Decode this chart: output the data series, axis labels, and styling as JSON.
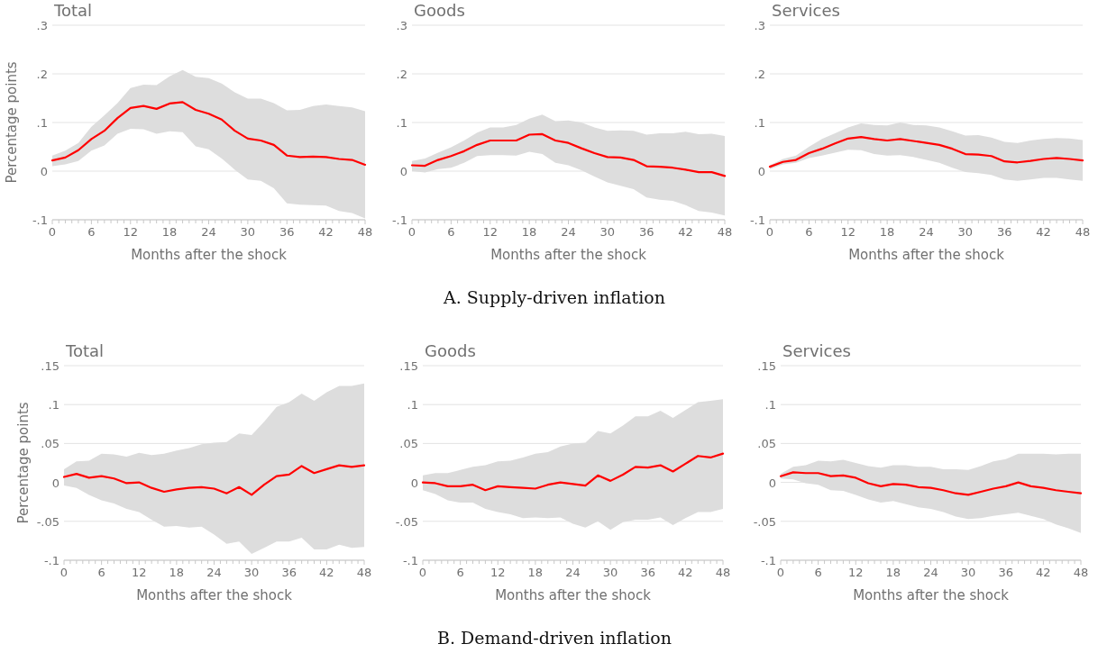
{
  "chart_data": [
    {
      "type": "line",
      "title": "Total",
      "ylabel": "Percentage points",
      "xlabel": "Months after the shock",
      "grid": "y",
      "line_style": "solid",
      "marker": "none",
      "xlim": [
        0,
        48
      ],
      "ylim": [
        -0.1,
        0.3
      ],
      "yticks": [
        {
          "value": -0.1,
          "label": "-.1"
        },
        {
          "value": 0,
          "label": "0"
        },
        {
          "value": 0.1,
          "label": ".1"
        },
        {
          "value": 0.2,
          "label": ".2"
        },
        {
          "value": 0.3,
          "label": ".3"
        }
      ],
      "xticks": [
        0,
        {
          "value": 1,
          "label": null
        },
        {
          "value": 2,
          "label": null
        },
        {
          "value": 3,
          "label": null
        },
        {
          "value": 4,
          "label": null
        },
        {
          "value": 5,
          "label": null
        },
        6,
        {
          "value": 7,
          "label": null
        },
        {
          "value": 8,
          "label": null
        },
        {
          "value": 9,
          "label": null
        },
        {
          "value": 10,
          "label": null
        },
        {
          "value": 11,
          "label": null
        },
        12,
        {
          "value": 13,
          "label": null
        },
        {
          "value": 14,
          "label": null
        },
        {
          "value": 15,
          "label": null
        },
        {
          "value": 16,
          "label": null
        },
        {
          "value": 17,
          "label": null
        },
        18,
        {
          "value": 19,
          "label": null
        },
        {
          "value": 20,
          "label": null
        },
        {
          "value": 21,
          "label": null
        },
        {
          "value": 22,
          "label": null
        },
        {
          "value": 23,
          "label": null
        },
        24,
        {
          "value": 25,
          "label": null
        },
        {
          "value": 26,
          "label": null
        },
        {
          "value": 27,
          "label": null
        },
        {
          "value": 28,
          "label": null
        },
        {
          "value": 29,
          "label": null
        },
        30,
        {
          "value": 31,
          "label": null
        },
        {
          "value": 32,
          "label": null
        },
        {
          "value": 33,
          "label": null
        },
        {
          "value": 34,
          "label": null
        },
        {
          "value": 35,
          "label": null
        },
        36,
        {
          "value": 37,
          "label": null
        },
        {
          "value": 38,
          "label": null
        },
        {
          "value": 39,
          "label": null
        },
        {
          "value": 40,
          "label": null
        },
        {
          "value": 41,
          "label": null
        },
        42,
        {
          "value": 43,
          "label": null
        },
        {
          "value": 44,
          "label": null
        },
        {
          "value": 45,
          "label": null
        },
        {
          "value": 46,
          "label": null
        },
        {
          "value": 47,
          "label": null
        },
        48
      ],
      "x": [
        0,
        2,
        4,
        6,
        8,
        10,
        12,
        14,
        16,
        18,
        20,
        22,
        24,
        26,
        28,
        30,
        32,
        34,
        36,
        38,
        40,
        42,
        44,
        46,
        48
      ],
      "series": [
        {
          "color": "#ff0000",
          "values": [
            0.022,
            0.028,
            0.043,
            0.066,
            0.083,
            0.109,
            0.13,
            0.134,
            0.128,
            0.139,
            0.142,
            0.126,
            0.118,
            0.106,
            0.083,
            0.067,
            0.063,
            0.054,
            0.032,
            0.029,
            0.03,
            0.029,
            0.025,
            0.023,
            0.013
          ],
          "upper": [
            0.032,
            0.042,
            0.058,
            0.091,
            0.115,
            0.14,
            0.171,
            0.178,
            0.177,
            0.195,
            0.208,
            0.194,
            0.191,
            0.18,
            0.162,
            0.149,
            0.149,
            0.14,
            0.125,
            0.126,
            0.134,
            0.137,
            0.134,
            0.131,
            0.123
          ],
          "lower": [
            0.01,
            0.014,
            0.021,
            0.042,
            0.053,
            0.077,
            0.087,
            0.086,
            0.077,
            0.082,
            0.08,
            0.051,
            0.045,
            0.026,
            0.003,
            -0.017,
            -0.02,
            -0.035,
            -0.066,
            -0.069,
            -0.07,
            -0.071,
            -0.082,
            -0.086,
            -0.097
          ]
        }
      ]
    },
    {
      "type": "line",
      "title": "Goods",
      "xlabel": "Months after the shock",
      "grid": "y",
      "line_style": "solid",
      "marker": "none",
      "xlim": [
        0,
        48
      ],
      "ylim": [
        -0.1,
        0.3
      ],
      "yticks": [
        {
          "value": -0.1,
          "label": "-.1"
        },
        {
          "value": 0,
          "label": "0"
        },
        {
          "value": 0.1,
          "label": ".1"
        },
        {
          "value": 0.2,
          "label": ".2"
        },
        {
          "value": 0.3,
          "label": ".3"
        }
      ],
      "xticks": [
        0,
        {
          "value": 1,
          "label": null
        },
        {
          "value": 2,
          "label": null
        },
        {
          "value": 3,
          "label": null
        },
        {
          "value": 4,
          "label": null
        },
        {
          "value": 5,
          "label": null
        },
        6,
        {
          "value": 7,
          "label": null
        },
        {
          "value": 8,
          "label": null
        },
        {
          "value": 9,
          "label": null
        },
        {
          "value": 10,
          "label": null
        },
        {
          "value": 11,
          "label": null
        },
        12,
        {
          "value": 13,
          "label": null
        },
        {
          "value": 14,
          "label": null
        },
        {
          "value": 15,
          "label": null
        },
        {
          "value": 16,
          "label": null
        },
        {
          "value": 17,
          "label": null
        },
        18,
        {
          "value": 19,
          "label": null
        },
        {
          "value": 20,
          "label": null
        },
        {
          "value": 21,
          "label": null
        },
        {
          "value": 22,
          "label": null
        },
        {
          "value": 23,
          "label": null
        },
        24,
        {
          "value": 25,
          "label": null
        },
        {
          "value": 26,
          "label": null
        },
        {
          "value": 27,
          "label": null
        },
        {
          "value": 28,
          "label": null
        },
        {
          "value": 29,
          "label": null
        },
        30,
        {
          "value": 31,
          "label": null
        },
        {
          "value": 32,
          "label": null
        },
        {
          "value": 33,
          "label": null
        },
        {
          "value": 34,
          "label": null
        },
        {
          "value": 35,
          "label": null
        },
        36,
        {
          "value": 37,
          "label": null
        },
        {
          "value": 38,
          "label": null
        },
        {
          "value": 39,
          "label": null
        },
        {
          "value": 40,
          "label": null
        },
        {
          "value": 41,
          "label": null
        },
        42,
        {
          "value": 43,
          "label": null
        },
        {
          "value": 44,
          "label": null
        },
        {
          "value": 45,
          "label": null
        },
        {
          "value": 46,
          "label": null
        },
        {
          "value": 47,
          "label": null
        },
        48
      ],
      "x": [
        0,
        2,
        4,
        6,
        8,
        10,
        12,
        14,
        16,
        18,
        20,
        22,
        24,
        26,
        28,
        30,
        32,
        34,
        36,
        38,
        40,
        42,
        44,
        46,
        48
      ],
      "annotations": [
        "A. Supply-driven inflation"
      ],
      "series": [
        {
          "color": "#ff0000",
          "values": [
            0.012,
            0.011,
            0.023,
            0.031,
            0.041,
            0.054,
            0.063,
            0.063,
            0.063,
            0.075,
            0.076,
            0.063,
            0.058,
            0.047,
            0.037,
            0.029,
            0.028,
            0.023,
            0.01,
            0.009,
            0.007,
            0.003,
            -0.002,
            -0.002,
            -0.01
          ],
          "upper": [
            0.021,
            0.026,
            0.038,
            0.049,
            0.063,
            0.079,
            0.09,
            0.09,
            0.095,
            0.108,
            0.116,
            0.103,
            0.104,
            0.1,
            0.09,
            0.083,
            0.084,
            0.083,
            0.075,
            0.078,
            0.078,
            0.081,
            0.076,
            0.077,
            0.072
          ],
          "lower": [
            0.0,
            -0.003,
            0.004,
            0.007,
            0.017,
            0.031,
            0.033,
            0.033,
            0.032,
            0.04,
            0.035,
            0.017,
            0.012,
            0.002,
            -0.011,
            -0.023,
            -0.03,
            -0.037,
            -0.054,
            -0.059,
            -0.061,
            -0.07,
            -0.082,
            -0.085,
            -0.091
          ]
        }
      ]
    },
    {
      "type": "line",
      "title": "Services",
      "xlabel": "Months after the shock",
      "grid": "y",
      "line_style": "solid",
      "marker": "none",
      "xlim": [
        0,
        48
      ],
      "ylim": [
        -0.1,
        0.3
      ],
      "yticks": [
        {
          "value": -0.1,
          "label": "-.1"
        },
        {
          "value": 0,
          "label": "0"
        },
        {
          "value": 0.1,
          "label": ".1"
        },
        {
          "value": 0.2,
          "label": ".2"
        },
        {
          "value": 0.3,
          "label": ".3"
        }
      ],
      "xticks": [
        0,
        {
          "value": 1,
          "label": null
        },
        {
          "value": 2,
          "label": null
        },
        {
          "value": 3,
          "label": null
        },
        {
          "value": 4,
          "label": null
        },
        {
          "value": 5,
          "label": null
        },
        6,
        {
          "value": 7,
          "label": null
        },
        {
          "value": 8,
          "label": null
        },
        {
          "value": 9,
          "label": null
        },
        {
          "value": 10,
          "label": null
        },
        {
          "value": 11,
          "label": null
        },
        12,
        {
          "value": 13,
          "label": null
        },
        {
          "value": 14,
          "label": null
        },
        {
          "value": 15,
          "label": null
        },
        {
          "value": 16,
          "label": null
        },
        {
          "value": 17,
          "label": null
        },
        18,
        {
          "value": 19,
          "label": null
        },
        {
          "value": 20,
          "label": null
        },
        {
          "value": 21,
          "label": null
        },
        {
          "value": 22,
          "label": null
        },
        {
          "value": 23,
          "label": null
        },
        24,
        {
          "value": 25,
          "label": null
        },
        {
          "value": 26,
          "label": null
        },
        {
          "value": 27,
          "label": null
        },
        {
          "value": 28,
          "label": null
        },
        {
          "value": 29,
          "label": null
        },
        30,
        {
          "value": 31,
          "label": null
        },
        {
          "value": 32,
          "label": null
        },
        {
          "value": 33,
          "label": null
        },
        {
          "value": 34,
          "label": null
        },
        {
          "value": 35,
          "label": null
        },
        36,
        {
          "value": 37,
          "label": null
        },
        {
          "value": 38,
          "label": null
        },
        {
          "value": 39,
          "label": null
        },
        {
          "value": 40,
          "label": null
        },
        {
          "value": 41,
          "label": null
        },
        42,
        {
          "value": 43,
          "label": null
        },
        {
          "value": 44,
          "label": null
        },
        {
          "value": 45,
          "label": null
        },
        {
          "value": 46,
          "label": null
        },
        {
          "value": 47,
          "label": null
        },
        48
      ],
      "x": [
        0,
        2,
        4,
        6,
        8,
        10,
        12,
        14,
        16,
        18,
        20,
        22,
        24,
        26,
        28,
        30,
        32,
        34,
        36,
        38,
        40,
        42,
        44,
        46,
        48
      ],
      "series": [
        {
          "color": "#ff0000",
          "values": [
            0.009,
            0.019,
            0.023,
            0.037,
            0.046,
            0.057,
            0.067,
            0.07,
            0.066,
            0.063,
            0.066,
            0.062,
            0.058,
            0.054,
            0.046,
            0.035,
            0.034,
            0.031,
            0.02,
            0.018,
            0.021,
            0.025,
            0.027,
            0.025,
            0.022
          ],
          "upper": [
            0.012,
            0.025,
            0.032,
            0.05,
            0.066,
            0.078,
            0.09,
            0.098,
            0.095,
            0.094,
            0.1,
            0.095,
            0.094,
            0.09,
            0.082,
            0.073,
            0.074,
            0.069,
            0.06,
            0.058,
            0.063,
            0.066,
            0.068,
            0.067,
            0.064
          ],
          "lower": [
            0.004,
            0.014,
            0.017,
            0.027,
            0.032,
            0.038,
            0.044,
            0.043,
            0.035,
            0.032,
            0.033,
            0.029,
            0.023,
            0.017,
            0.007,
            -0.002,
            -0.004,
            -0.008,
            -0.017,
            -0.02,
            -0.017,
            -0.014,
            -0.014,
            -0.017,
            -0.02
          ]
        }
      ]
    },
    {
      "type": "line",
      "title": "Total",
      "ylabel": "Percentage points",
      "xlabel": "Months after the shock",
      "grid": "y",
      "line_style": "solid",
      "marker": "none",
      "xlim": [
        0,
        48
      ],
      "ylim": [
        -0.1,
        0.15
      ],
      "yticks": [
        {
          "value": -0.1,
          "label": "-.1"
        },
        {
          "value": -0.05,
          "label": "-.05"
        },
        {
          "value": 0,
          "label": "0"
        },
        {
          "value": 0.05,
          "label": ".05"
        },
        {
          "value": 0.1,
          "label": ".1"
        },
        {
          "value": 0.15,
          "label": ".15"
        }
      ],
      "xticks": [
        0,
        {
          "value": 1,
          "label": null
        },
        {
          "value": 2,
          "label": null
        },
        {
          "value": 3,
          "label": null
        },
        {
          "value": 4,
          "label": null
        },
        {
          "value": 5,
          "label": null
        },
        6,
        {
          "value": 7,
          "label": null
        },
        {
          "value": 8,
          "label": null
        },
        {
          "value": 9,
          "label": null
        },
        {
          "value": 10,
          "label": null
        },
        {
          "value": 11,
          "label": null
        },
        12,
        {
          "value": 13,
          "label": null
        },
        {
          "value": 14,
          "label": null
        },
        {
          "value": 15,
          "label": null
        },
        {
          "value": 16,
          "label": null
        },
        {
          "value": 17,
          "label": null
        },
        18,
        {
          "value": 19,
          "label": null
        },
        {
          "value": 20,
          "label": null
        },
        {
          "value": 21,
          "label": null
        },
        {
          "value": 22,
          "label": null
        },
        {
          "value": 23,
          "label": null
        },
        24,
        {
          "value": 25,
          "label": null
        },
        {
          "value": 26,
          "label": null
        },
        {
          "value": 27,
          "label": null
        },
        {
          "value": 28,
          "label": null
        },
        {
          "value": 29,
          "label": null
        },
        30,
        {
          "value": 31,
          "label": null
        },
        {
          "value": 32,
          "label": null
        },
        {
          "value": 33,
          "label": null
        },
        {
          "value": 34,
          "label": null
        },
        {
          "value": 35,
          "label": null
        },
        36,
        {
          "value": 37,
          "label": null
        },
        {
          "value": 38,
          "label": null
        },
        {
          "value": 39,
          "label": null
        },
        {
          "value": 40,
          "label": null
        },
        {
          "value": 41,
          "label": null
        },
        42,
        {
          "value": 43,
          "label": null
        },
        {
          "value": 44,
          "label": null
        },
        {
          "value": 45,
          "label": null
        },
        {
          "value": 46,
          "label": null
        },
        {
          "value": 47,
          "label": null
        },
        48
      ],
      "x": [
        0,
        2,
        4,
        6,
        8,
        10,
        12,
        14,
        16,
        18,
        20,
        22,
        24,
        26,
        28,
        30,
        32,
        34,
        36,
        38,
        40,
        42,
        44,
        46,
        48
      ],
      "series": [
        {
          "color": "#ff0000",
          "values": [
            0.007,
            0.011,
            0.006,
            0.008,
            0.005,
            -0.001,
            0.0,
            -0.007,
            -0.012,
            -0.009,
            -0.007,
            -0.006,
            -0.008,
            -0.014,
            -0.006,
            -0.016,
            -0.003,
            0.008,
            0.01,
            0.021,
            0.012,
            0.017,
            0.022,
            0.02,
            0.022
          ],
          "upper": [
            0.017,
            0.027,
            0.028,
            0.037,
            0.036,
            0.033,
            0.038,
            0.035,
            0.037,
            0.041,
            0.044,
            0.049,
            0.051,
            0.052,
            0.063,
            0.061,
            0.078,
            0.097,
            0.103,
            0.114,
            0.105,
            0.116,
            0.124,
            0.124,
            0.127
          ],
          "lower": [
            -0.004,
            -0.007,
            -0.016,
            -0.023,
            -0.027,
            -0.034,
            -0.038,
            -0.048,
            -0.057,
            -0.056,
            -0.058,
            -0.057,
            -0.067,
            -0.079,
            -0.076,
            -0.092,
            -0.084,
            -0.076,
            -0.076,
            -0.071,
            -0.086,
            -0.086,
            -0.08,
            -0.084,
            -0.083
          ]
        }
      ]
    },
    {
      "type": "line",
      "title": "Goods",
      "xlabel": "Months after the shock",
      "grid": "y",
      "line_style": "solid",
      "marker": "none",
      "xlim": [
        0,
        48
      ],
      "ylim": [
        -0.1,
        0.15
      ],
      "yticks": [
        {
          "value": -0.1,
          "label": "-.1"
        },
        {
          "value": -0.05,
          "label": "-.05"
        },
        {
          "value": 0,
          "label": "0"
        },
        {
          "value": 0.05,
          "label": ".05"
        },
        {
          "value": 0.1,
          "label": ".1"
        },
        {
          "value": 0.15,
          "label": ".15"
        }
      ],
      "xticks": [
        0,
        {
          "value": 1,
          "label": null
        },
        {
          "value": 2,
          "label": null
        },
        {
          "value": 3,
          "label": null
        },
        {
          "value": 4,
          "label": null
        },
        {
          "value": 5,
          "label": null
        },
        6,
        {
          "value": 7,
          "label": null
        },
        {
          "value": 8,
          "label": null
        },
        {
          "value": 9,
          "label": null
        },
        {
          "value": 10,
          "label": null
        },
        {
          "value": 11,
          "label": null
        },
        12,
        {
          "value": 13,
          "label": null
        },
        {
          "value": 14,
          "label": null
        },
        {
          "value": 15,
          "label": null
        },
        {
          "value": 16,
          "label": null
        },
        {
          "value": 17,
          "label": null
        },
        18,
        {
          "value": 19,
          "label": null
        },
        {
          "value": 20,
          "label": null
        },
        {
          "value": 21,
          "label": null
        },
        {
          "value": 22,
          "label": null
        },
        {
          "value": 23,
          "label": null
        },
        24,
        {
          "value": 25,
          "label": null
        },
        {
          "value": 26,
          "label": null
        },
        {
          "value": 27,
          "label": null
        },
        {
          "value": 28,
          "label": null
        },
        {
          "value": 29,
          "label": null
        },
        30,
        {
          "value": 31,
          "label": null
        },
        {
          "value": 32,
          "label": null
        },
        {
          "value": 33,
          "label": null
        },
        {
          "value": 34,
          "label": null
        },
        {
          "value": 35,
          "label": null
        },
        36,
        {
          "value": 37,
          "label": null
        },
        {
          "value": 38,
          "label": null
        },
        {
          "value": 39,
          "label": null
        },
        {
          "value": 40,
          "label": null
        },
        {
          "value": 41,
          "label": null
        },
        42,
        {
          "value": 43,
          "label": null
        },
        {
          "value": 44,
          "label": null
        },
        {
          "value": 45,
          "label": null
        },
        {
          "value": 46,
          "label": null
        },
        {
          "value": 47,
          "label": null
        },
        48
      ],
      "x": [
        0,
        2,
        4,
        6,
        8,
        10,
        12,
        14,
        16,
        18,
        20,
        22,
        24,
        26,
        28,
        30,
        32,
        34,
        36,
        38,
        40,
        42,
        44,
        46,
        48
      ],
      "annotations": [
        "B. Demand-driven inflation"
      ],
      "series": [
        {
          "color": "#ff0000",
          "values": [
            0.0,
            -0.001,
            -0.005,
            -0.005,
            -0.003,
            -0.01,
            -0.005,
            -0.006,
            -0.007,
            -0.008,
            -0.003,
            0.0,
            -0.002,
            -0.004,
            0.009,
            0.002,
            0.01,
            0.02,
            0.019,
            0.022,
            0.014,
            0.024,
            0.034,
            0.032,
            0.037
          ],
          "upper": [
            0.009,
            0.012,
            0.012,
            0.016,
            0.02,
            0.022,
            0.027,
            0.028,
            0.032,
            0.037,
            0.039,
            0.046,
            0.05,
            0.051,
            0.066,
            0.063,
            0.073,
            0.085,
            0.085,
            0.092,
            0.083,
            0.093,
            0.103,
            0.105,
            0.107
          ],
          "lower": [
            -0.01,
            -0.015,
            -0.023,
            -0.026,
            -0.026,
            -0.034,
            -0.038,
            -0.041,
            -0.046,
            -0.045,
            -0.046,
            -0.045,
            -0.053,
            -0.058,
            -0.05,
            -0.061,
            -0.051,
            -0.048,
            -0.048,
            -0.045,
            -0.055,
            -0.046,
            -0.038,
            -0.038,
            -0.034
          ]
        }
      ]
    },
    {
      "type": "line",
      "title": "Services",
      "xlabel": "Months after the shock",
      "grid": "y",
      "line_style": "solid",
      "marker": "none",
      "xlim": [
        0,
        48
      ],
      "ylim": [
        -0.1,
        0.15
      ],
      "yticks": [
        {
          "value": -0.1,
          "label": "-.1"
        },
        {
          "value": -0.05,
          "label": "-.05"
        },
        {
          "value": 0,
          "label": "0"
        },
        {
          "value": 0.05,
          "label": ".05"
        },
        {
          "value": 0.1,
          "label": ".1"
        },
        {
          "value": 0.15,
          "label": ".15"
        }
      ],
      "xticks": [
        0,
        {
          "value": 1,
          "label": null
        },
        {
          "value": 2,
          "label": null
        },
        {
          "value": 3,
          "label": null
        },
        {
          "value": 4,
          "label": null
        },
        {
          "value": 5,
          "label": null
        },
        6,
        {
          "value": 7,
          "label": null
        },
        {
          "value": 8,
          "label": null
        },
        {
          "value": 9,
          "label": null
        },
        {
          "value": 10,
          "label": null
        },
        {
          "value": 11,
          "label": null
        },
        12,
        {
          "value": 13,
          "label": null
        },
        {
          "value": 14,
          "label": null
        },
        {
          "value": 15,
          "label": null
        },
        {
          "value": 16,
          "label": null
        },
        {
          "value": 17,
          "label": null
        },
        18,
        {
          "value": 19,
          "label": null
        },
        {
          "value": 20,
          "label": null
        },
        {
          "value": 21,
          "label": null
        },
        {
          "value": 22,
          "label": null
        },
        {
          "value": 23,
          "label": null
        },
        24,
        {
          "value": 25,
          "label": null
        },
        {
          "value": 26,
          "label": null
        },
        {
          "value": 27,
          "label": null
        },
        {
          "value": 28,
          "label": null
        },
        {
          "value": 29,
          "label": null
        },
        30,
        {
          "value": 31,
          "label": null
        },
        {
          "value": 32,
          "label": null
        },
        {
          "value": 33,
          "label": null
        },
        {
          "value": 34,
          "label": null
        },
        {
          "value": 35,
          "label": null
        },
        36,
        {
          "value": 37,
          "label": null
        },
        {
          "value": 38,
          "label": null
        },
        {
          "value": 39,
          "label": null
        },
        {
          "value": 40,
          "label": null
        },
        {
          "value": 41,
          "label": null
        },
        42,
        {
          "value": 43,
          "label": null
        },
        {
          "value": 44,
          "label": null
        },
        {
          "value": 45,
          "label": null
        },
        {
          "value": 46,
          "label": null
        },
        {
          "value": 47,
          "label": null
        },
        48
      ],
      "x": [
        0,
        2,
        4,
        6,
        8,
        10,
        12,
        14,
        16,
        18,
        20,
        22,
        24,
        26,
        28,
        30,
        32,
        34,
        36,
        38,
        40,
        42,
        44,
        46,
        48
      ],
      "series": [
        {
          "color": "#ff0000",
          "values": [
            0.008,
            0.013,
            0.012,
            0.012,
            0.008,
            0.009,
            0.006,
            -0.001,
            -0.005,
            -0.002,
            -0.003,
            -0.006,
            -0.007,
            -0.01,
            -0.014,
            -0.016,
            -0.012,
            -0.008,
            -0.005,
            0.0,
            -0.005,
            -0.007,
            -0.01,
            -0.012,
            -0.014
          ],
          "upper": [
            0.011,
            0.02,
            0.022,
            0.028,
            0.027,
            0.029,
            0.025,
            0.021,
            0.019,
            0.022,
            0.022,
            0.02,
            0.02,
            0.017,
            0.017,
            0.016,
            0.021,
            0.027,
            0.03,
            0.037,
            0.037,
            0.037,
            0.036,
            0.037,
            0.037
          ],
          "lower": [
            0.005,
            0.004,
            -0.001,
            -0.003,
            -0.01,
            -0.011,
            -0.016,
            -0.022,
            -0.026,
            -0.024,
            -0.028,
            -0.032,
            -0.034,
            -0.038,
            -0.044,
            -0.047,
            -0.046,
            -0.043,
            -0.041,
            -0.039,
            -0.043,
            -0.047,
            -0.054,
            -0.059,
            -0.065
          ]
        }
      ]
    }
  ]
}
